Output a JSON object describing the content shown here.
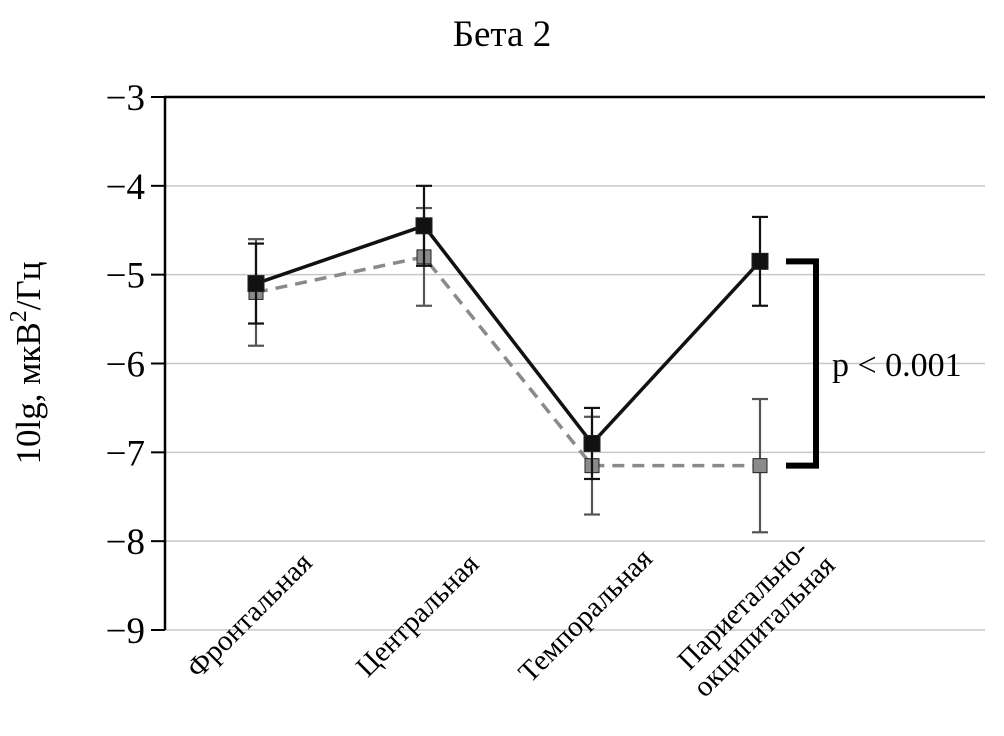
{
  "chart_data": {
    "type": "line",
    "title": "Бета 2",
    "ylabel": "10lg, мкВ²/Гц",
    "ylabel_parts": {
      "pre": "10lg, мкВ",
      "sup": "2",
      "post": "/Гц"
    },
    "categories": [
      [
        "Фронтальная"
      ],
      [
        "Центральная"
      ],
      [
        "Темпоральная"
      ],
      [
        "Париетально-",
        "окципитальная"
      ]
    ],
    "ylim": [
      -9,
      -3
    ],
    "yticks": [
      -3,
      -4,
      -5,
      -6,
      -7,
      -8,
      -9
    ],
    "grid": true,
    "legend_position": "none",
    "series": [
      {
        "name": "series-black-solid",
        "color": "#111111",
        "error_color": "#111111",
        "line_style": "solid",
        "marker": "square",
        "values": [
          -5.1,
          -4.45,
          -6.9,
          -4.85
        ],
        "errors": [
          0.45,
          0.45,
          0.4,
          0.5
        ]
      },
      {
        "name": "series-gray-dashed",
        "color": "#8a8a8a",
        "error_color": "#555555",
        "line_style": "dashed",
        "marker": "square",
        "values": [
          -5.2,
          -4.8,
          -7.15,
          -7.15
        ],
        "errors": [
          0.6,
          0.55,
          0.55,
          0.75
        ]
      }
    ],
    "annotation": {
      "text": "p < 0.001",
      "category_index": 3,
      "between_series": [
        0,
        1
      ]
    }
  }
}
